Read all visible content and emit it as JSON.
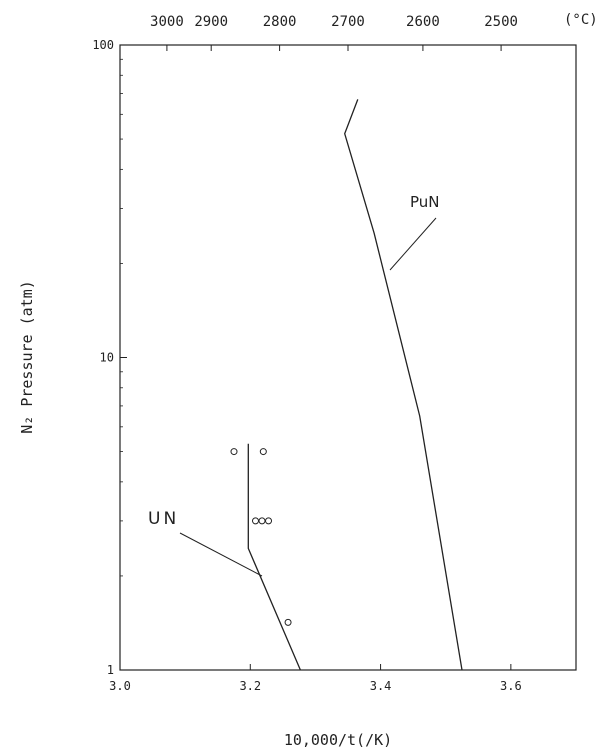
{
  "chart_data": {
    "type": "line",
    "xlabel": "10,000/t(/K)",
    "ylabel": "N₂ Pressure (atm)",
    "yscale": "log",
    "xlim": [
      3.0,
      3.7
    ],
    "ylim": [
      1,
      100
    ],
    "x_ticks": [
      3.0,
      3.2,
      3.4,
      3.6
    ],
    "x_tick_labels": [
      "3.0",
      "3.2",
      "3.4",
      "3.6"
    ],
    "y_ticks": [
      1,
      10,
      100
    ],
    "y_tick_labels": [
      "1",
      "10",
      "100"
    ],
    "top_axis": {
      "unit": "(°C)",
      "ticks": [
        {
          "label": "3000",
          "x": 3.072
        },
        {
          "label": "2900",
          "x": 3.14
        },
        {
          "label": "2800",
          "x": 3.245
        },
        {
          "label": "2700",
          "x": 3.35
        },
        {
          "label": "2600",
          "x": 3.465
        },
        {
          "label": "2500",
          "x": 3.585
        }
      ]
    },
    "series": [
      {
        "name": "PuN",
        "points": [
          [
            3.365,
            67
          ],
          [
            3.345,
            52
          ],
          [
            3.39,
            25
          ],
          [
            3.46,
            6.5
          ],
          [
            3.525,
            1.0
          ]
        ]
      },
      {
        "name": "UN",
        "points": [
          [
            3.197,
            5.3
          ],
          [
            3.197,
            2.45
          ],
          [
            3.277,
            1.0
          ]
        ]
      }
    ],
    "markers": [
      {
        "x": 3.175,
        "y": 5.0
      },
      {
        "x": 3.22,
        "y": 5.0
      },
      {
        "x": 3.208,
        "y": 3.0
      },
      {
        "x": 3.218,
        "y": 3.0
      },
      {
        "x": 3.228,
        "y": 3.0
      },
      {
        "x": 3.258,
        "y": 1.42
      }
    ],
    "annotations": [
      {
        "text": "PuN",
        "series": "PuN"
      },
      {
        "text": "UN",
        "series": "UN"
      }
    ],
    "grid": false
  }
}
